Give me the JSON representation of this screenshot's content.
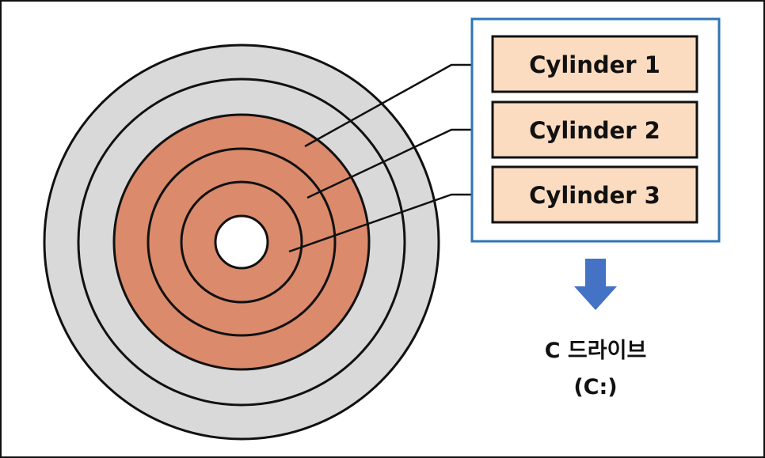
{
  "cylinders": [
    {
      "label": "Cylinder 1"
    },
    {
      "label": "Cylinder 2"
    },
    {
      "label": "Cylinder 3"
    }
  ],
  "drive": {
    "line1": "C 드라이브",
    "line2": "(C:)"
  },
  "colors": {
    "platter_outer": "#d9d9d9",
    "platter_inner": "#db8a6c",
    "box_fill": "#fcdcc0",
    "group_border": "#2e75b6",
    "down_arrow": "#4472c4",
    "stroke": "#111111"
  },
  "icons": {
    "group_to_drive": "down-arrow-icon"
  }
}
